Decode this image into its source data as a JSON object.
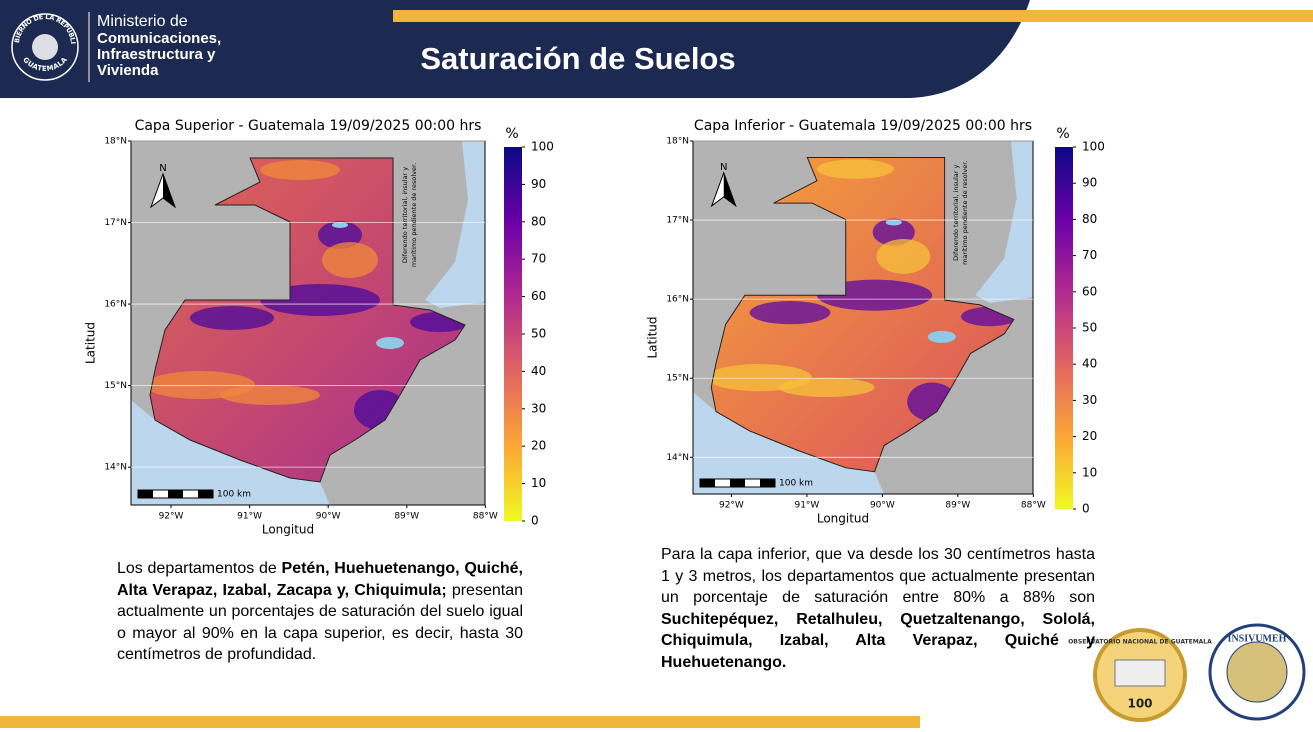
{
  "header": {
    "seal_top": "GOBIERNO DE LA REPÚBLICA",
    "seal_bottom": "GUATEMALA",
    "ministry": [
      "Ministerio de",
      "Comunicaciones,",
      "Infraestructura y",
      "Vivienda"
    ],
    "title": "Saturación de Suelos"
  },
  "panels": [
    {
      "title": "Capa Superior - Guatemala 19/09/2025 00:00 hrs",
      "y_label": "Latitud",
      "x_label": "Longitud",
      "lat_ticks": [
        "18°N",
        "17°N",
        "16°N",
        "15°N",
        "14°N"
      ],
      "lon_ticks": [
        "92°W",
        "91°W",
        "90°W",
        "89°W",
        "88°W"
      ],
      "north": "N",
      "scale_label": "100 km",
      "dispute_note": [
        "Diferendo territorial, insular y",
        "marítimo pendiente de resolver."
      ],
      "colorbar_unit": "%",
      "colorbar_range": [
        0,
        100
      ],
      "colorbar_ticks": [
        0,
        10,
        20,
        30,
        40,
        50,
        60,
        70,
        80,
        90,
        100
      ],
      "text": [
        {
          "text": "Los departamentos de ",
          "bold": false
        },
        {
          "text": "Petén, Huehuetenango, Quiché, Alta Verapaz, Izabal, Zacapa y, Chiquimula;",
          "bold": true
        },
        {
          "text": " presentan actualmente un porcentajes de saturación del suelo igual o mayor al 90% en la capa superior, es decir, hasta 30 centímetros de profundidad.",
          "bold": false
        }
      ]
    },
    {
      "title": "Capa Inferior - Guatemala 19/09/2025 00:00 hrs",
      "y_label": "Latitud",
      "x_label": "Longitud",
      "lat_ticks": [
        "18°N",
        "17°N",
        "16°N",
        "15°N",
        "14°N"
      ],
      "lon_ticks": [
        "92°W",
        "91°W",
        "90°W",
        "89°W",
        "88°W"
      ],
      "north": "N",
      "scale_label": "100 km",
      "dispute_note": [
        "Diferendo territorial, insular y",
        "marítimo pendiente de resolver."
      ],
      "colorbar_unit": "%",
      "colorbar_range": [
        0,
        100
      ],
      "colorbar_ticks": [
        0,
        10,
        20,
        30,
        40,
        50,
        60,
        70,
        80,
        90,
        100
      ],
      "text": [
        {
          "text": "Para la capa inferior, que va desde los 30 centímetros hasta 1 y 3 metros, los departamentos que actualmente presentan un porcentaje de saturación entre 80% a 88% son ",
          "bold": false
        },
        {
          "text": "Suchitepéquez, Retalhuleu, Quetzaltenango, Sololá, Chiquimula, Izabal, Alta Verapaz, Quiché y Huehuetenango.",
          "bold": true
        }
      ]
    }
  ],
  "logos": {
    "observatory": "OBSERVATORIO NACIONAL DE GUATEMALA",
    "anniversary": "100",
    "insivumeh": "INSIVUMEH"
  }
}
